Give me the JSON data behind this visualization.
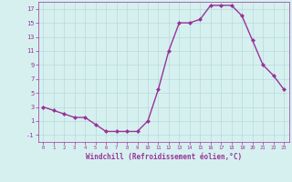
{
  "x": [
    0,
    1,
    2,
    3,
    4,
    5,
    6,
    7,
    8,
    9,
    10,
    11,
    12,
    13,
    14,
    15,
    16,
    17,
    18,
    19,
    20,
    21,
    22,
    23
  ],
  "y": [
    3,
    2.5,
    2,
    1.5,
    1.5,
    0.5,
    -0.5,
    -0.5,
    -0.5,
    -0.5,
    1,
    5.5,
    11,
    15,
    15,
    15.5,
    17.5,
    17.5,
    17.5,
    16,
    12.5,
    9,
    7.5,
    5.5
  ],
  "xlabel": "Windchill (Refroidissement éolien,°C)",
  "line_color": "#993399",
  "marker": "D",
  "marker_size": 2,
  "bg_color": "#d6f0f0",
  "grid_color": "#b8dada",
  "tick_color": "#993399",
  "label_color": "#993399",
  "ylim": [
    -2,
    18
  ],
  "xlim": [
    -0.5,
    23.5
  ],
  "yticks": [
    -1,
    1,
    3,
    5,
    7,
    9,
    11,
    13,
    15,
    17
  ],
  "xticks": [
    0,
    1,
    2,
    3,
    4,
    5,
    6,
    7,
    8,
    9,
    10,
    11,
    12,
    13,
    14,
    15,
    16,
    17,
    18,
    19,
    20,
    21,
    22,
    23
  ],
  "linewidth": 1.0,
  "figsize": [
    3.2,
    2.0
  ],
  "dpi": 100
}
